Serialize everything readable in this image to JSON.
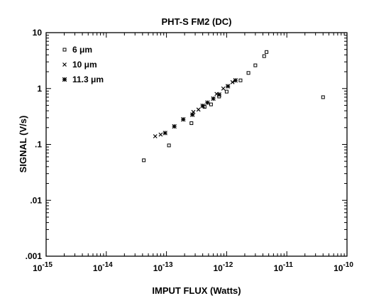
{
  "chart_data": {
    "type": "scatter",
    "title": "PHT-S FM2 (DC)",
    "xlabel": "IMPUT FLUX (Watts)",
    "ylabel": "SIGNAL (V/s)",
    "xscale": "log",
    "yscale": "log",
    "xlim": [
      1e-15,
      1e-10
    ],
    "ylim": [
      0.001,
      10
    ],
    "xticks": [
      1e-15,
      1e-14,
      1e-13,
      1e-12,
      1e-11,
      1e-10
    ],
    "xtick_bases": [
      "10",
      "10",
      "10",
      "10",
      "10",
      "10"
    ],
    "xtick_exponents": [
      "-15",
      "-14",
      "-13",
      "-12",
      "-11",
      "-10"
    ],
    "yticks": [
      0.001,
      0.01,
      0.1,
      1,
      10
    ],
    "ytick_labels": [
      ".001",
      ".01",
      ".1",
      "1",
      "10"
    ],
    "grid": false,
    "legend_position": "top-left",
    "series": [
      {
        "name": "6 μm",
        "marker": "square",
        "x": [
          4.2e-14,
          1.1e-13,
          2.6e-13,
          4.3e-13,
          5.5e-13,
          7.5e-13,
          1e-12,
          1.7e-12,
          2.3e-12,
          3e-12,
          4.2e-12,
          4.6e-12,
          4e-11
        ],
        "y": [
          0.052,
          0.096,
          0.24,
          0.47,
          0.52,
          0.72,
          0.88,
          1.4,
          1.9,
          2.6,
          3.8,
          4.5,
          0.7
        ]
      },
      {
        "name": "10 μm",
        "marker": "x",
        "x": [
          6.5e-14,
          8e-14,
          2.8e-13,
          3.4e-13,
          6.8e-13,
          8.8e-13,
          1.25e-12
        ],
        "y": [
          0.14,
          0.15,
          0.38,
          0.42,
          0.8,
          1.0,
          1.3
        ]
      },
      {
        "name": "11.3 μm",
        "marker": "asterisk",
        "x": [
          9.5e-14,
          1.35e-13,
          1.9e-13,
          2.7e-13,
          4e-13,
          4.8e-13,
          6e-13,
          7.5e-13,
          1.05e-12,
          1.4e-12
        ],
        "y": [
          0.16,
          0.21,
          0.28,
          0.34,
          0.49,
          0.56,
          0.66,
          0.78,
          1.1,
          1.4
        ]
      }
    ]
  }
}
